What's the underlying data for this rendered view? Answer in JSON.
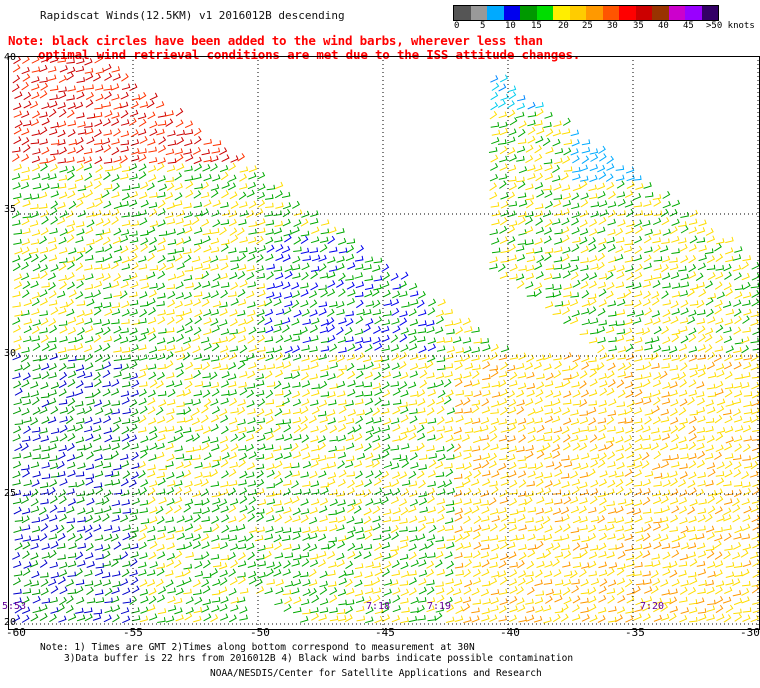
{
  "title": "Rapidscat Winds(12.5KM) v1 2016012B descending",
  "note": {
    "line1": "Note: black circles have been added to the wind barbs, wherever less than",
    "line2": "optimal wind retrieval conditions are met due to the ISS attitude changes."
  },
  "legend": {
    "ticks": [
      "0",
      "5",
      "10",
      "15",
      "20",
      "25",
      "30",
      "35",
      "40",
      "45",
      ">50 knots"
    ],
    "colors": [
      "#555555",
      "#999999",
      "#00aaff",
      "#0000ee",
      "#009900",
      "#00dd00",
      "#ffee00",
      "#ffcc00",
      "#ff9900",
      "#ff5500",
      "#ff0000",
      "#cc0000",
      "#993300",
      "#cc00cc",
      "#9900ff",
      "#330066"
    ]
  },
  "latitudes": [
    "40",
    "35",
    "30",
    "25",
    "20"
  ],
  "longitudes": [
    "-60",
    "-55",
    "-50",
    "-45",
    "-40",
    "-35",
    "-30"
  ],
  "swath_times": [
    "5:53",
    "7:18",
    "7:19",
    "7:20"
  ],
  "footer": {
    "line1": "Note: 1) Times are GMT 2)Times along bottom correspond to measurement at 30N",
    "line2": "3)Data buffer is 22 hrs from 2016012B 4) Black wind barbs indicate possible contamination",
    "credit": "NOAA/NESDIS/Center for Satellite Applications and Research"
  }
}
